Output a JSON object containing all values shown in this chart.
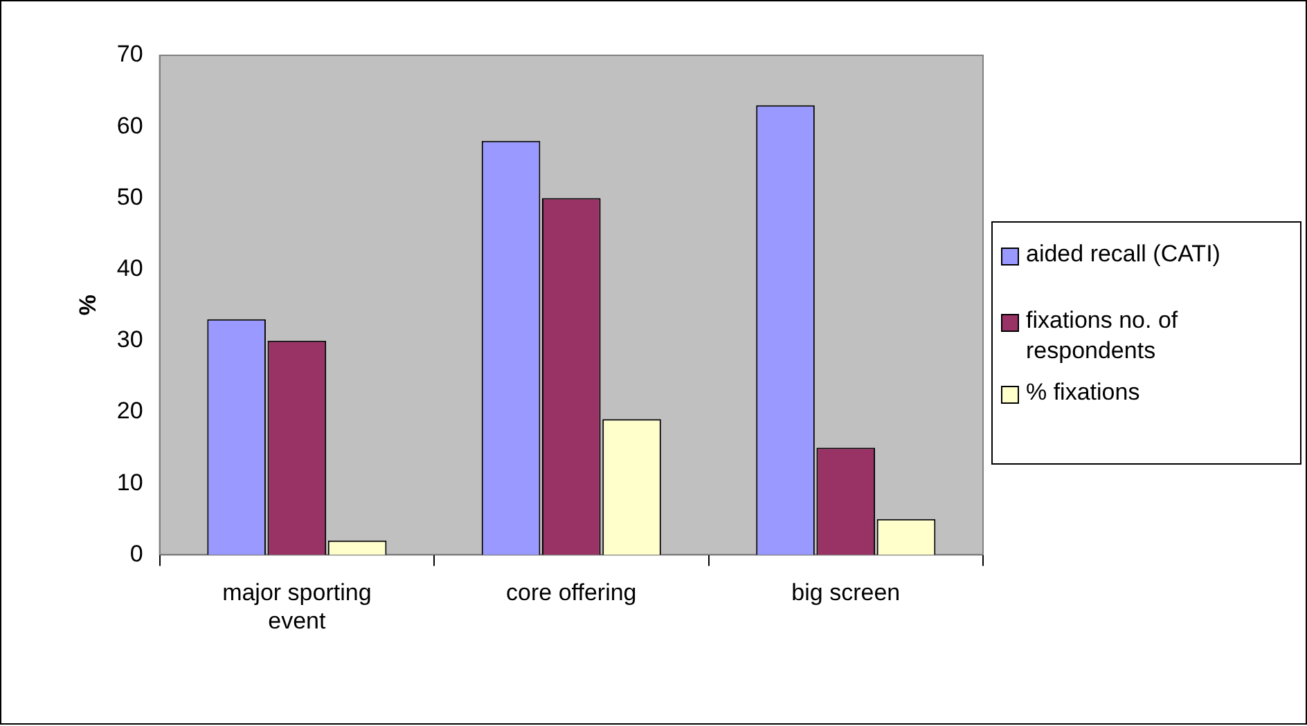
{
  "chart_data": {
    "type": "bar",
    "ylabel": "%",
    "categories": [
      "major sporting event",
      "core offering",
      "big screen"
    ],
    "series": [
      {
        "name": "aided recall (CATI)",
        "color": "#9999ff",
        "values": [
          33,
          58,
          63
        ]
      },
      {
        "name": "fixations no. of respondents",
        "color": "#993366",
        "values": [
          30,
          50,
          15
        ]
      },
      {
        "name": "% fixations",
        "color": "#ffffcc",
        "values": [
          2,
          19,
          5
        ]
      }
    ],
    "ylim": [
      0,
      70
    ],
    "yticks": [
      0,
      10,
      20,
      30,
      40,
      50,
      60,
      70
    ],
    "grid": false,
    "legend": "right"
  }
}
